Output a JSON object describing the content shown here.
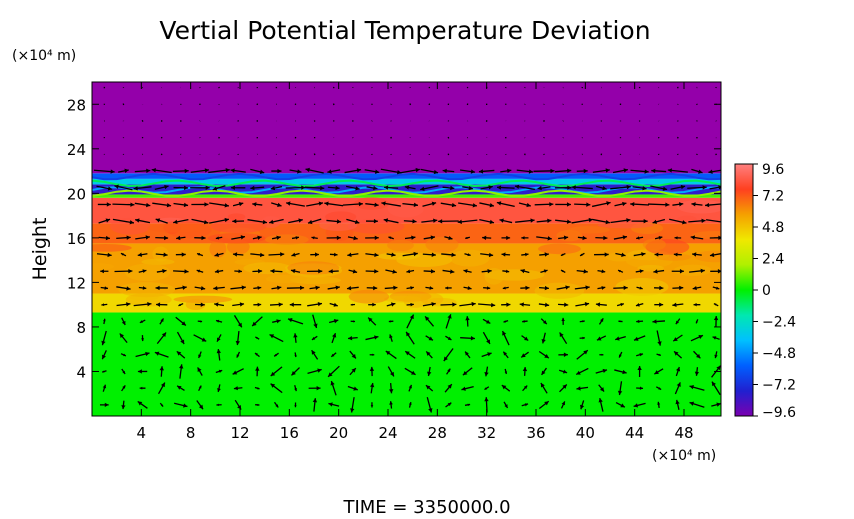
{
  "chart_data": {
    "type": "heatmap",
    "title": "Vertial Potential Temperature Deviation",
    "ylabel": "Height",
    "y_unit": "(×10⁴ m)",
    "x_unit": "(×10⁴ m)",
    "xlim": [
      0,
      51
    ],
    "ylim": [
      0,
      30
    ],
    "x_ticks": [
      "4",
      "8",
      "12",
      "16",
      "20",
      "24",
      "28",
      "32",
      "36",
      "40",
      "44",
      "48"
    ],
    "y_ticks": [
      "4",
      "8",
      "12",
      "16",
      "20",
      "24",
      "28"
    ],
    "colorbar": {
      "min": -9.6,
      "max": 9.6,
      "tick_labels": [
        "9.6",
        "7.2",
        "4.8",
        "2.4",
        "0",
        "−2.4",
        "−4.8",
        "−7.2",
        "−9.6"
      ]
    },
    "field_bands": [
      {
        "y_from": 0,
        "y_to": 9.3,
        "value": 0
      },
      {
        "y_from": 9.3,
        "y_to": 11,
        "value": 4.0
      },
      {
        "y_from": 11,
        "y_to": 15.5,
        "value": 5.6
      },
      {
        "y_from": 15.5,
        "y_to": 17.3,
        "value": 6.6
      },
      {
        "y_from": 17.3,
        "y_to": 19.6,
        "value": 8.0
      },
      {
        "y_from": 19.6,
        "y_to": 19.9,
        "value": 1.0
      },
      {
        "y_from": 19.9,
        "y_to": 20.8,
        "value": -7.5
      },
      {
        "y_from": 20.8,
        "y_to": 21.3,
        "value": -2.0
      },
      {
        "y_from": 21.3,
        "y_to": 21.8,
        "value": -5.0
      },
      {
        "y_from": 21.8,
        "y_to": 30,
        "value": -9.6
      }
    ],
    "vector_field": "wind arrows overlaid on grid",
    "time_label": "TIME = 3350000.0"
  },
  "colors": {
    "purple": "#9400aa",
    "green": "#00f000",
    "yellow": "#f0d800",
    "orange": "#f5a000",
    "red": "#ff3a1e"
  }
}
